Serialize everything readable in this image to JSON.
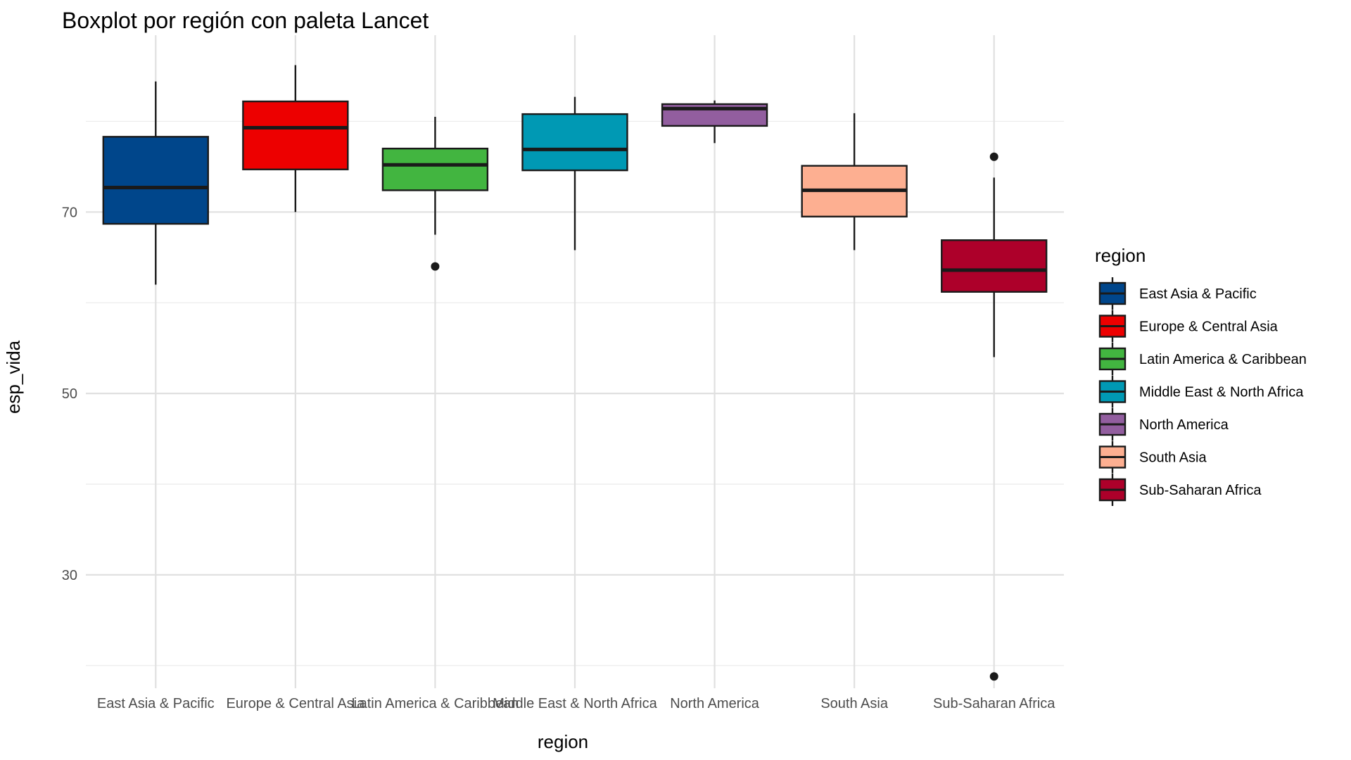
{
  "chart_data": {
    "type": "boxplot",
    "title": "Boxplot por región con paleta Lancet",
    "xlabel": "region",
    "ylabel": "esp_vida",
    "ylim": [
      17.5,
      89.5
    ],
    "yticks": [
      30,
      50,
      70
    ],
    "grid": true,
    "legend": {
      "title": "region",
      "placement": "right",
      "entries": [
        "East Asia & Pacific",
        "Europe & Central Asia",
        "Latin America & Caribbean",
        "Middle East & North Africa",
        "North America",
        "South Asia",
        "Sub-Saharan Africa"
      ]
    },
    "categories": [
      "East Asia & Pacific",
      "Europe & Central Asia",
      "Latin America & Caribbean",
      "Middle East & North Africa",
      "North America",
      "South Asia",
      "Sub-Saharan Africa"
    ],
    "boxes": [
      {
        "category": "East Asia & Pacific",
        "color": "#00468B",
        "whisker_low": 62.0,
        "q1": 68.7,
        "median": 72.7,
        "q3": 78.3,
        "whisker_high": 84.4,
        "outliers": []
      },
      {
        "category": "Europe & Central Asia",
        "color": "#ED0000",
        "whisker_low": 70.0,
        "q1": 74.7,
        "median": 79.3,
        "q3": 82.2,
        "whisker_high": 86.2,
        "outliers": []
      },
      {
        "category": "Latin America & Caribbean",
        "color": "#42B540",
        "whisker_low": 67.5,
        "q1": 72.4,
        "median": 75.2,
        "q3": 77.0,
        "whisker_high": 80.5,
        "outliers": [
          64.0
        ]
      },
      {
        "category": "Middle East & North Africa",
        "color": "#0099B4",
        "whisker_low": 65.8,
        "q1": 74.6,
        "median": 76.9,
        "q3": 80.8,
        "whisker_high": 82.7,
        "outliers": []
      },
      {
        "category": "North America",
        "color": "#925E9F",
        "whisker_low": 77.6,
        "q1": 79.5,
        "median": 81.4,
        "q3": 81.9,
        "whisker_high": 82.3,
        "outliers": []
      },
      {
        "category": "South Asia",
        "color": "#FDAF91",
        "whisker_low": 65.8,
        "q1": 69.5,
        "median": 72.4,
        "q3": 75.1,
        "whisker_high": 80.9,
        "outliers": []
      },
      {
        "category": "Sub-Saharan Africa",
        "color": "#AD002A",
        "whisker_low": 54.0,
        "q1": 61.2,
        "median": 63.6,
        "q3": 66.9,
        "whisker_high": 73.8,
        "outliers": [
          76.1,
          18.8
        ]
      }
    ]
  }
}
